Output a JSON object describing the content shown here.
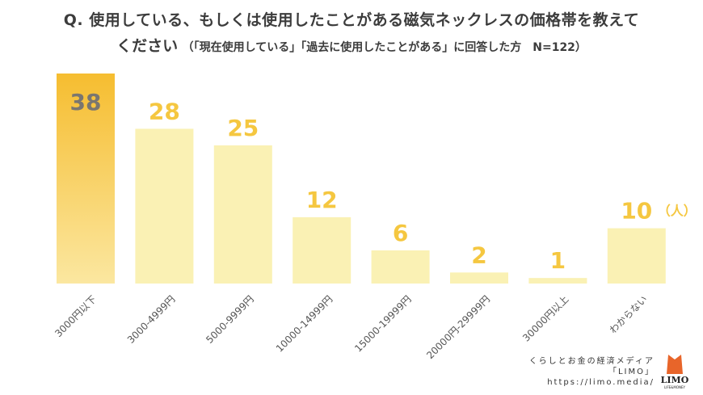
{
  "title": {
    "line1": "Q. 使用している、もしくは使用したことがある磁気ネックレスの価格帯を教えて",
    "line2_main": "ください",
    "line2_note": "（「現在使用している」「過去に使用したことがある」に回答した方　N=122）"
  },
  "chart_data": {
    "type": "bar",
    "title": "Q. 使用している、もしくは使用したことがある磁気ネックレスの価格帯を教えてください",
    "categories": [
      "3000円以下",
      "3000-4999円",
      "5000-9999円",
      "10000-14999円",
      "15000-19999円",
      "20000円-29999円",
      "30000円以上",
      "わからない"
    ],
    "values": [
      38,
      28,
      25,
      12,
      6,
      2,
      1,
      10
    ],
    "unit_label": "（人）",
    "ylim": [
      0,
      38
    ],
    "grid": false,
    "legend": "none",
    "colors": {
      "highlight_top": "#f6bd30",
      "highlight_bottom": "#fbe7a0",
      "bar": "#faf1b4",
      "highlight_label": "#7a7670",
      "label": "#f5c740",
      "tick_label": "#555555"
    }
  },
  "brand": {
    "tagline": "くらしとお金の経済メディア",
    "name": "「LIMO」",
    "url": "https://limo.media/",
    "logo_text": "LIMO",
    "logo_sub": "LIFE & MONEY"
  }
}
